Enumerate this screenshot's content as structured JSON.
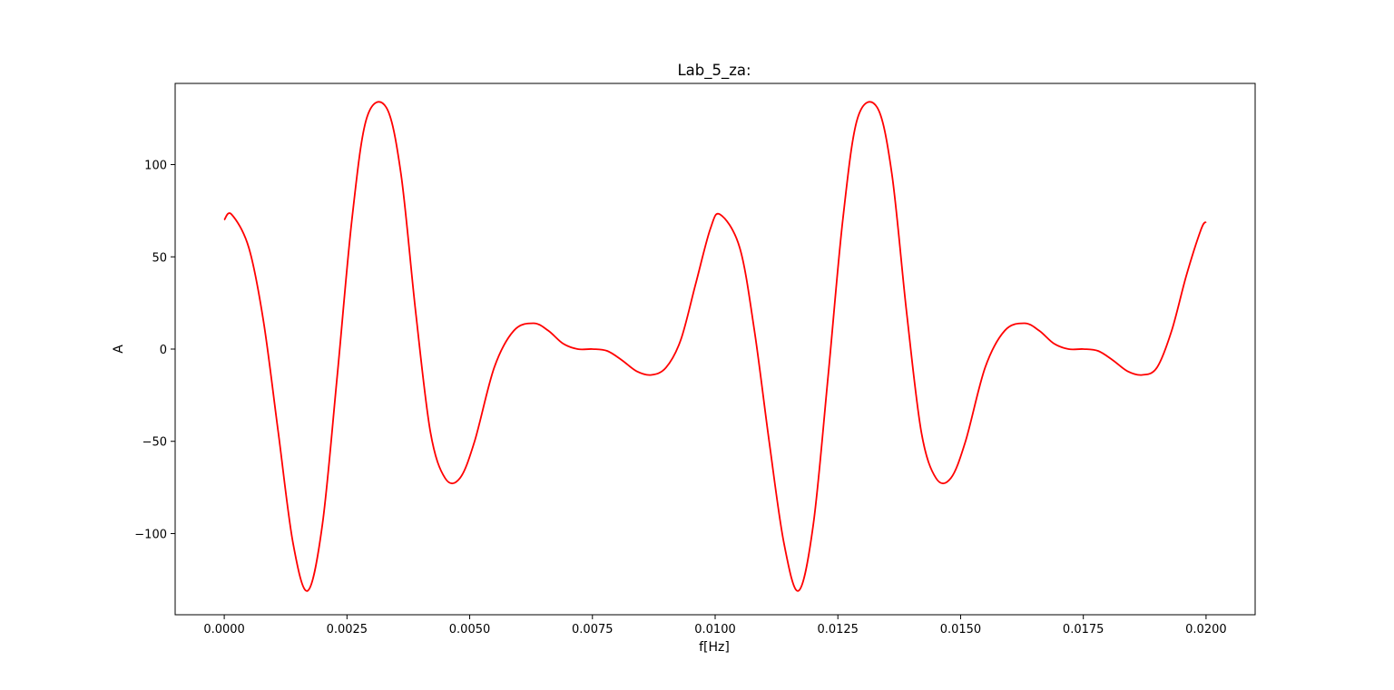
{
  "chart_data": {
    "type": "line",
    "title": "Lab_5_za:",
    "xlabel": "f[Hz]",
    "ylabel": "A",
    "xlim": [
      -0.001,
      0.021
    ],
    "ylim": [
      -144,
      144
    ],
    "xticks": [
      0.0,
      0.0025,
      0.005,
      0.0075,
      0.01,
      0.0125,
      0.015,
      0.0175,
      0.02
    ],
    "xtick_labels": [
      "0.0000",
      "0.0025",
      "0.0050",
      "0.0075",
      "0.0100",
      "0.0125",
      "0.0150",
      "0.0175",
      "0.0200"
    ],
    "yticks": [
      -100,
      -50,
      0,
      50,
      100
    ],
    "ytick_labels": [
      "−100",
      "−50",
      "0",
      "50",
      "100"
    ],
    "grid": false,
    "line_color": "#ff0000",
    "series": [
      {
        "x": [
          0.0,
          0.00015,
          0.0005,
          0.0008,
          0.0011,
          0.0014,
          0.0017,
          0.002,
          0.0023,
          0.0026,
          0.0029,
          0.0033,
          0.0036,
          0.0039,
          0.0042,
          0.0045,
          0.0048,
          0.0051,
          0.0055,
          0.0059,
          0.0063,
          0.0066,
          0.0069,
          0.0072,
          0.0075,
          0.0078,
          0.0081,
          0.0084,
          0.0087,
          0.009,
          0.0093,
          0.0096,
          0.0099,
          0.0101,
          0.0105,
          0.0108,
          0.0111,
          0.0114,
          0.0117,
          0.012,
          0.0123,
          0.0126,
          0.0129,
          0.0133,
          0.0136,
          0.0139,
          0.0142,
          0.0145,
          0.0148,
          0.0151,
          0.0155,
          0.0159,
          0.0163,
          0.0166,
          0.0169,
          0.0172,
          0.0175,
          0.0178,
          0.0181,
          0.0184,
          0.0187,
          0.019,
          0.0193,
          0.0196,
          0.0199,
          0.02
        ],
        "y": [
          70,
          73,
          55,
          15,
          -45,
          -105,
          -131,
          -95,
          -15,
          70,
          125,
          131,
          95,
          20,
          -45,
          -70,
          -70,
          -50,
          -10,
          10,
          14,
          10,
          3,
          0,
          0,
          -1,
          -6,
          -12,
          -14,
          -10,
          5,
          35,
          65,
          73,
          55,
          10,
          -50,
          -105,
          -131,
          -95,
          -15,
          70,
          125,
          131,
          95,
          20,
          -45,
          -70,
          -70,
          -50,
          -10,
          10,
          14,
          10,
          3,
          0,
          0,
          -1,
          -6,
          -12,
          -14,
          -10,
          10,
          40,
          65,
          69
        ]
      }
    ]
  }
}
